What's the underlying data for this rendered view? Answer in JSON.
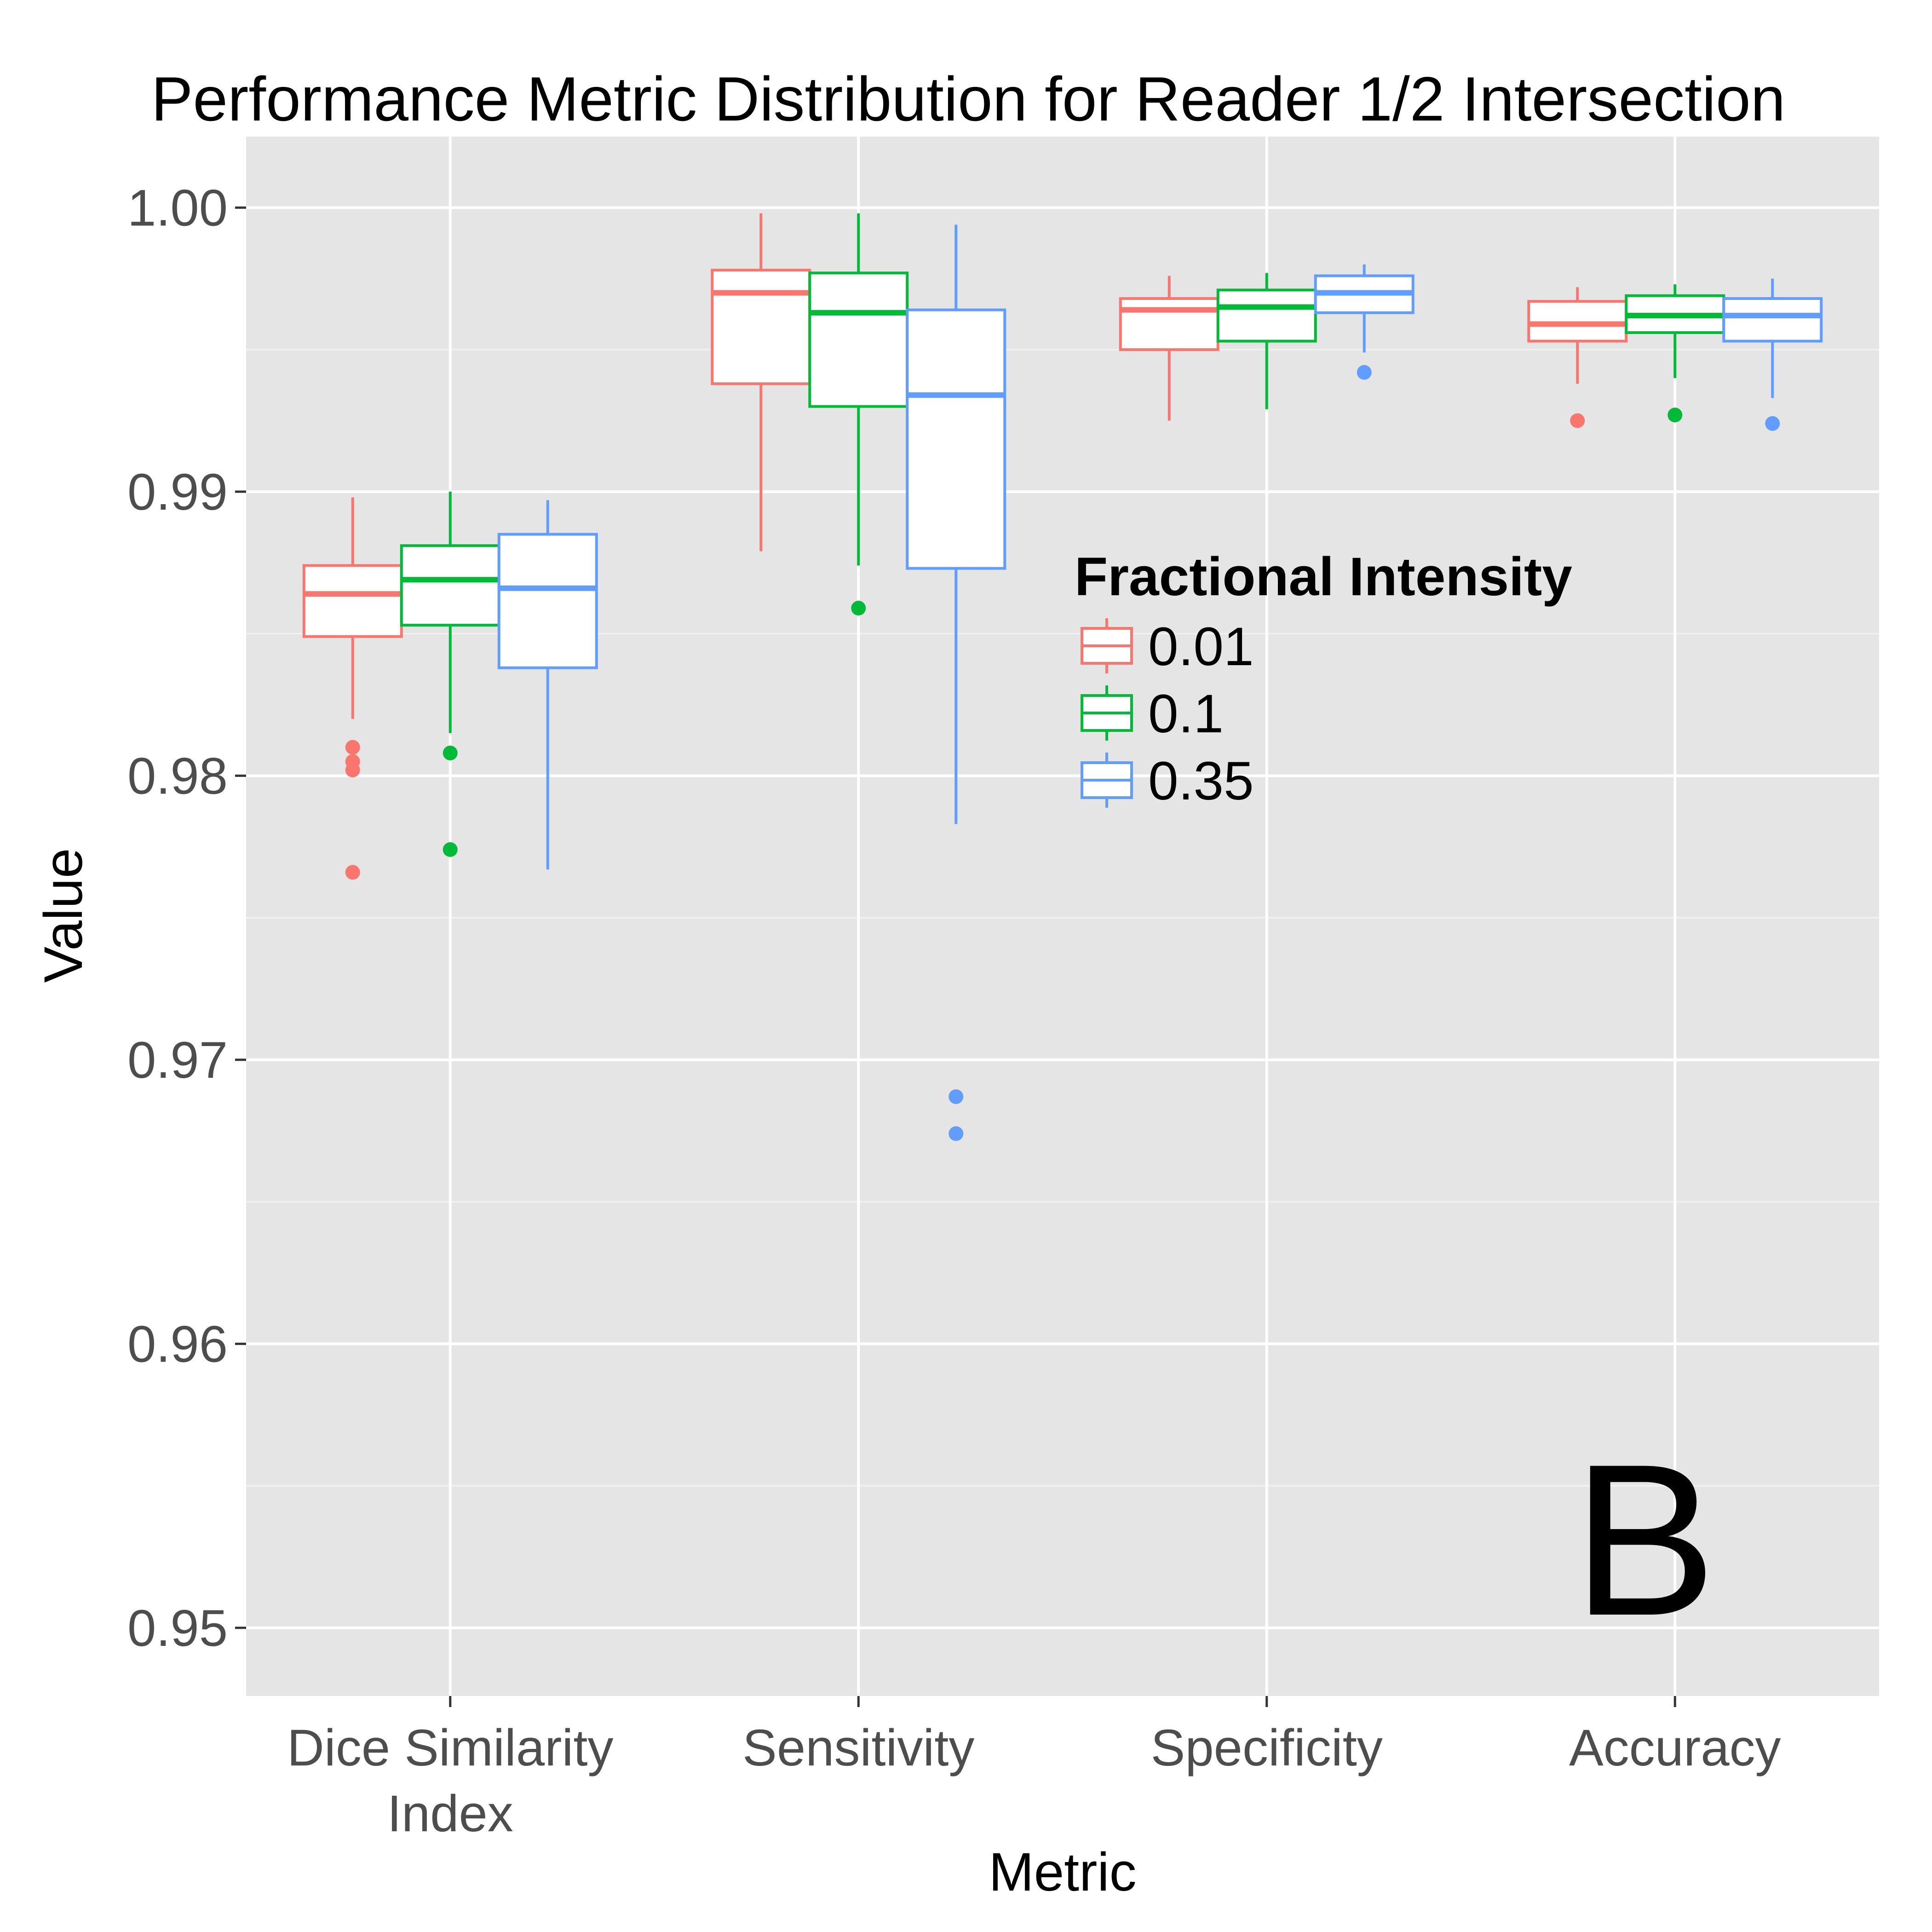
{
  "chart_data": {
    "type": "boxplot",
    "title": "Performance Metric Distribution for Reader 1/2 Intersection",
    "xlabel": "Metric",
    "ylabel": "Value",
    "ylim": [
      0.9476,
      1.0025
    ],
    "y_ticks": [
      "1.00",
      "0.99",
      "0.98",
      "0.97",
      "0.96",
      "0.95"
    ],
    "y_tick_values": [
      1.0,
      0.99,
      0.98,
      0.97,
      0.96,
      0.95
    ],
    "grid": true,
    "panel_label": "B",
    "categories": [
      {
        "lines": [
          "Dice Similarity",
          "Index"
        ]
      },
      {
        "lines": [
          "Sensitivity"
        ]
      },
      {
        "lines": [
          "Specificity"
        ]
      },
      {
        "lines": [
          "Accuracy"
        ]
      }
    ],
    "legend": {
      "title": "Fractional Intensity",
      "position": "inside-right",
      "entries": [
        "0.01",
        "0.1",
        "0.35"
      ]
    },
    "series": [
      {
        "name": "0.01",
        "color": "#F8766D",
        "boxes": [
          {
            "whisker_low": 0.982,
            "q1": 0.9849,
            "median": 0.9864,
            "q3": 0.9874,
            "whisker_high": 0.9898,
            "outliers": [
              0.981,
              0.9805,
              0.9802,
              0.9766
            ]
          },
          {
            "whisker_low": 0.9879,
            "q1": 0.9938,
            "median": 0.997,
            "q3": 0.9978,
            "whisker_high": 0.9998,
            "outliers": []
          },
          {
            "whisker_low": 0.9925,
            "q1": 0.995,
            "median": 0.9964,
            "q3": 0.9968,
            "whisker_high": 0.9976,
            "outliers": []
          },
          {
            "whisker_low": 0.9938,
            "q1": 0.9953,
            "median": 0.9959,
            "q3": 0.9967,
            "whisker_high": 0.9972,
            "outliers": [
              0.9925
            ]
          }
        ]
      },
      {
        "name": "0.1",
        "color": "#00BA38",
        "boxes": [
          {
            "whisker_low": 0.9815,
            "q1": 0.9853,
            "median": 0.9869,
            "q3": 0.9881,
            "whisker_high": 0.99,
            "outliers": [
              0.9808,
              0.9774
            ]
          },
          {
            "whisker_low": 0.9874,
            "q1": 0.993,
            "median": 0.9963,
            "q3": 0.9977,
            "whisker_high": 0.9998,
            "outliers": [
              0.9859
            ]
          },
          {
            "whisker_low": 0.9929,
            "q1": 0.9953,
            "median": 0.9965,
            "q3": 0.9971,
            "whisker_high": 0.9977,
            "outliers": []
          },
          {
            "whisker_low": 0.994,
            "q1": 0.9956,
            "median": 0.9962,
            "q3": 0.9969,
            "whisker_high": 0.9973,
            "outliers": [
              0.9927
            ]
          }
        ]
      },
      {
        "name": "0.35",
        "color": "#619CFF",
        "boxes": [
          {
            "whisker_low": 0.9767,
            "q1": 0.9838,
            "median": 0.9866,
            "q3": 0.9885,
            "whisker_high": 0.9897,
            "outliers": []
          },
          {
            "whisker_low": 0.9783,
            "q1": 0.9873,
            "median": 0.9934,
            "q3": 0.9964,
            "whisker_high": 0.9994,
            "outliers": [
              0.9687,
              0.9674
            ]
          },
          {
            "whisker_low": 0.9949,
            "q1": 0.9963,
            "median": 0.997,
            "q3": 0.9976,
            "whisker_high": 0.998,
            "outliers": [
              0.9942
            ]
          },
          {
            "whisker_low": 0.9933,
            "q1": 0.9953,
            "median": 0.9962,
            "q3": 0.9968,
            "whisker_high": 0.9975,
            "outliers": [
              0.9924
            ]
          }
        ]
      }
    ]
  }
}
